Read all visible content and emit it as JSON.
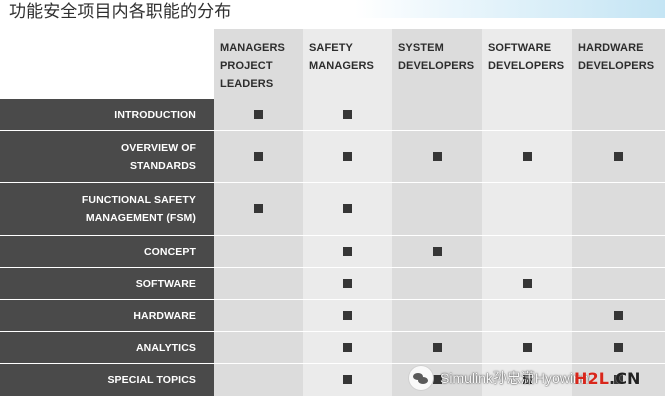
{
  "title": "功能安全项目内各职能的分布",
  "table": {
    "columns": [
      "MANAGERS\nPROJECT\nLEADERS",
      "SAFETY\nMANAGERS",
      "SYSTEM\nDEVELOPERS",
      "SOFTWARE\nDEVELOPERS",
      "HARDWARE\nDEVELOPERS"
    ],
    "rows": [
      {
        "label": "INTRODUCTION",
        "marks": [
          true,
          true,
          false,
          false,
          false
        ]
      },
      {
        "label": "OVERVIEW OF\nSTANDARDS",
        "marks": [
          true,
          true,
          true,
          true,
          true
        ]
      },
      {
        "label": "FUNCTIONAL SAFETY\nMANAGEMENT (FSM)",
        "marks": [
          true,
          true,
          false,
          false,
          false
        ]
      },
      {
        "label": "CONCEPT",
        "marks": [
          false,
          true,
          true,
          false,
          false
        ]
      },
      {
        "label": "SOFTWARE",
        "marks": [
          false,
          true,
          false,
          true,
          false
        ]
      },
      {
        "label": "HARDWARE",
        "marks": [
          false,
          true,
          false,
          false,
          true
        ]
      },
      {
        "label": "ANALYTICS",
        "marks": [
          false,
          true,
          true,
          true,
          true
        ]
      },
      {
        "label": "SPECIAL TOPICS",
        "marks": [
          false,
          true,
          true,
          true,
          true
        ]
      }
    ]
  },
  "watermark": {
    "handle": "Simulink孙忠潇Hyowinner"
  },
  "brand": {
    "part1": "H2L",
    "part2": ".CN"
  }
}
